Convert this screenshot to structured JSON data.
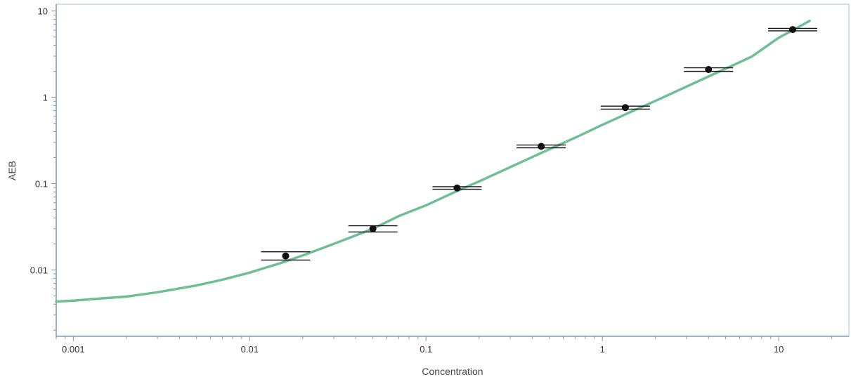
{
  "chart_data": {
    "type": "scatter",
    "xlabel": "Concentration",
    "ylabel": "AEB",
    "x_scale": "log",
    "y_scale": "log",
    "xlim": [
      0.0008,
      25
    ],
    "ylim": [
      0.0017,
      12
    ],
    "x_ticks": [
      0.001,
      0.01,
      0.1,
      1,
      10
    ],
    "x_tick_labels": [
      "0.001",
      "0.01",
      "0.1",
      "1",
      "10"
    ],
    "y_ticks": [
      0.01,
      0.1,
      1,
      10
    ],
    "y_tick_labels": [
      "0.01",
      "0.1",
      "1",
      "10"
    ],
    "grid": false,
    "legend": "none",
    "colors": {
      "fit_line": "#6fbf95",
      "points": "#111111",
      "axis": "#7f9ab0",
      "frame": "#aabccc"
    },
    "points": {
      "x": [
        0.016,
        0.05,
        0.15,
        0.45,
        1.35,
        4.0,
        12.0
      ],
      "y": [
        0.0145,
        0.03,
        0.089,
        0.27,
        0.76,
        2.1,
        6.1
      ],
      "y_upper": [
        0.0162,
        0.0325,
        0.092,
        0.28,
        0.79,
        2.2,
        6.3
      ],
      "y_lower": [
        0.013,
        0.0275,
        0.086,
        0.26,
        0.73,
        2.0,
        5.9
      ]
    },
    "fit_line": {
      "x": [
        0.0008,
        0.001,
        0.0015,
        0.002,
        0.003,
        0.005,
        0.007,
        0.01,
        0.015,
        0.02,
        0.03,
        0.05,
        0.07,
        0.1,
        0.15,
        0.2,
        0.3,
        0.5,
        0.7,
        1,
        1.5,
        2,
        3,
        5,
        7,
        10,
        15
      ],
      "y": [
        0.0043,
        0.0044,
        0.0047,
        0.0049,
        0.0055,
        0.0066,
        0.0077,
        0.0093,
        0.012,
        0.0147,
        0.02,
        0.03,
        0.042,
        0.056,
        0.082,
        0.106,
        0.155,
        0.25,
        0.34,
        0.48,
        0.7,
        0.91,
        1.33,
        2.15,
        2.95,
        4.9,
        7.7
      ]
    }
  }
}
